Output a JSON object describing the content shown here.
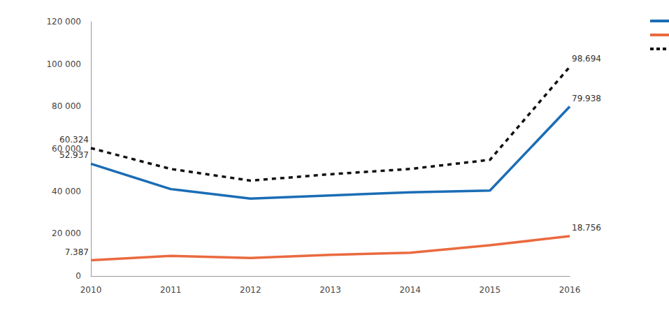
{
  "chart_data": {
    "type": "line",
    "categories": [
      "2010",
      "2011",
      "2012",
      "2013",
      "2014",
      "2015",
      "2016"
    ],
    "series": [
      {
        "color": "#1b6db5",
        "line_style": "solid",
        "values": [
          52937,
          41000,
          36500,
          38000,
          39500,
          40300,
          79938
        ],
        "value_labels": [
          "52.937",
          null,
          null,
          null,
          null,
          null,
          "79.938"
        ]
      },
      {
        "color": "#ea6a3f",
        "line_style": "solid",
        "values": [
          7387,
          9500,
          8500,
          10000,
          11000,
          14500,
          18756
        ],
        "value_labels": [
          "7.387",
          null,
          null,
          null,
          null,
          null,
          "18.756"
        ]
      },
      {
        "color": "#111111",
        "line_style": "dashed",
        "values": [
          60324,
          50500,
          45000,
          48000,
          50500,
          54800,
          98694
        ],
        "value_labels": [
          "60.324",
          null,
          null,
          null,
          null,
          null,
          "98.694"
        ]
      }
    ],
    "ylim": [
      0,
      120000
    ],
    "yticks": [
      0,
      {
        "value": 20000,
        "label": "20 000"
      },
      {
        "value": 40000,
        "label": "40 000"
      },
      {
        "value": 60000,
        "label": "60 000"
      },
      {
        "value": 80000,
        "label": "80 000"
      },
      {
        "value": 100000,
        "label": "100 000"
      },
      {
        "value": 120000,
        "label": "120 000"
      }
    ],
    "grid": false,
    "data_labels": true,
    "legend": "top-right"
  }
}
